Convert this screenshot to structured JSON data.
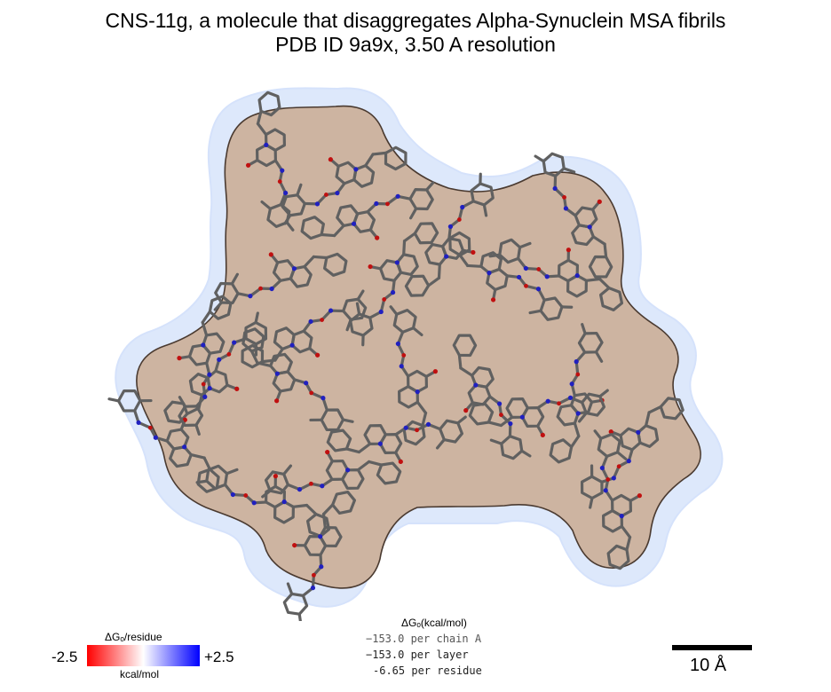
{
  "title_line1": "CNS-11g, a molecule that disaggregates Alpha-Synuclein MSA fibrils",
  "title_line2": "PDB ID 9a9x, 3.50 A resolution",
  "colors": {
    "surface_fill": "#cdb4a1",
    "surface_outline": "#4a3a30",
    "halo": "#dde8fb",
    "bond": "#606060",
    "nitrogen": "#2020c0",
    "oxygen": "#c01010",
    "gradient_min": "#ff0000",
    "gradient_mid": "#ffffff",
    "gradient_max": "#0000ff"
  },
  "legend": {
    "title": "ΔGₒ/residue",
    "min_label": "-2.5",
    "max_label": "+2.5",
    "unit": "kcal/mol"
  },
  "energy": {
    "title": "ΔGₒ(kcal/mol)",
    "per_chain": "−153.0 per chain A",
    "per_layer": "−153.0 per layer",
    "per_residue": "-6.65 per residue"
  },
  "scale_bar": {
    "label": "10 Å"
  }
}
